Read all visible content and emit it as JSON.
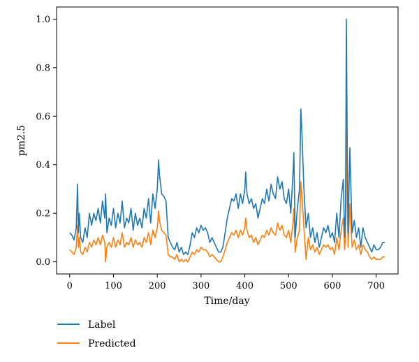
{
  "chart_data": {
    "type": "line",
    "title": "",
    "xlabel": "Time/day",
    "ylabel": "pm2.5",
    "xlim": [
      -30,
      750
    ],
    "ylim": [
      -0.05,
      1.05
    ],
    "x_ticks": [
      0,
      100,
      200,
      300,
      400,
      500,
      600,
      700
    ],
    "y_ticks": [
      0.0,
      0.2,
      0.4,
      0.6,
      0.8,
      1.0
    ],
    "x_tick_labels": [
      "0",
      "100",
      "200",
      "300",
      "400",
      "500",
      "600",
      "700"
    ],
    "y_tick_labels": [
      "0.0",
      "0.2",
      "0.4",
      "0.6",
      "0.8",
      "1.0"
    ],
    "grid": false,
    "legend_position": "below",
    "series": [
      {
        "name": "Label",
        "color": "#1f77b4",
        "x": [
          0,
          5,
          10,
          15,
          18,
          20,
          22,
          25,
          30,
          35,
          40,
          45,
          50,
          55,
          60,
          65,
          70,
          75,
          80,
          82,
          85,
          90,
          95,
          100,
          105,
          110,
          115,
          120,
          125,
          130,
          135,
          140,
          145,
          150,
          155,
          160,
          165,
          170,
          175,
          180,
          185,
          190,
          195,
          200,
          203,
          205,
          210,
          215,
          220,
          225,
          230,
          235,
          240,
          245,
          250,
          255,
          260,
          265,
          270,
          275,
          280,
          285,
          290,
          295,
          300,
          305,
          310,
          315,
          320,
          325,
          330,
          335,
          340,
          345,
          350,
          355,
          360,
          365,
          370,
          375,
          380,
          385,
          390,
          395,
          400,
          402,
          405,
          410,
          415,
          420,
          425,
          430,
          435,
          440,
          445,
          450,
          455,
          460,
          465,
          470,
          475,
          480,
          485,
          490,
          495,
          500,
          505,
          510,
          512,
          515,
          520,
          525,
          528,
          530,
          535,
          540,
          545,
          550,
          555,
          560,
          565,
          570,
          575,
          580,
          585,
          590,
          595,
          600,
          605,
          610,
          615,
          620,
          625,
          628,
          630,
          632,
          634,
          636,
          640,
          645,
          650,
          655,
          660,
          665,
          670,
          675,
          680,
          685,
          690,
          695,
          700,
          705,
          710,
          715,
          720
        ],
        "y": [
          0.12,
          0.11,
          0.09,
          0.14,
          0.32,
          0.12,
          0.2,
          0.1,
          0.08,
          0.14,
          0.1,
          0.2,
          0.15,
          0.2,
          0.17,
          0.22,
          0.16,
          0.25,
          0.18,
          0.28,
          0.12,
          0.18,
          0.15,
          0.22,
          0.14,
          0.2,
          0.16,
          0.25,
          0.14,
          0.18,
          0.16,
          0.22,
          0.13,
          0.2,
          0.15,
          0.18,
          0.14,
          0.22,
          0.18,
          0.26,
          0.16,
          0.28,
          0.22,
          0.3,
          0.42,
          0.36,
          0.28,
          0.27,
          0.25,
          0.1,
          0.08,
          0.06,
          0.05,
          0.08,
          0.04,
          0.06,
          0.03,
          0.04,
          0.03,
          0.07,
          0.12,
          0.1,
          0.14,
          0.12,
          0.15,
          0.13,
          0.14,
          0.12,
          0.08,
          0.1,
          0.08,
          0.06,
          0.04,
          0.04,
          0.06,
          0.12,
          0.18,
          0.22,
          0.26,
          0.25,
          0.28,
          0.22,
          0.28,
          0.24,
          0.3,
          0.37,
          0.28,
          0.24,
          0.26,
          0.22,
          0.24,
          0.18,
          0.22,
          0.26,
          0.24,
          0.3,
          0.25,
          0.32,
          0.28,
          0.26,
          0.35,
          0.3,
          0.33,
          0.26,
          0.24,
          0.3,
          0.2,
          0.36,
          0.45,
          0.1,
          0.22,
          0.3,
          0.63,
          0.55,
          0.3,
          0.14,
          0.2,
          0.1,
          0.14,
          0.08,
          0.12,
          0.06,
          0.1,
          0.14,
          0.12,
          0.15,
          0.1,
          0.12,
          0.08,
          0.2,
          0.1,
          0.26,
          0.34,
          0.1,
          0.2,
          1.0,
          0.45,
          0.12,
          0.47,
          0.12,
          0.17,
          0.1,
          0.14,
          0.06,
          0.14,
          0.1,
          0.08,
          0.06,
          0.04,
          0.07,
          0.05,
          0.05,
          0.06,
          0.08,
          0.08
        ]
      },
      {
        "name": "Predicted",
        "color": "#ff7f0e",
        "x": [
          0,
          5,
          10,
          15,
          18,
          20,
          22,
          25,
          30,
          35,
          40,
          45,
          50,
          55,
          60,
          65,
          70,
          75,
          80,
          82,
          85,
          90,
          95,
          100,
          105,
          110,
          115,
          120,
          125,
          130,
          135,
          140,
          145,
          150,
          155,
          160,
          165,
          170,
          175,
          180,
          185,
          190,
          195,
          200,
          203,
          205,
          210,
          215,
          220,
          225,
          230,
          235,
          240,
          245,
          250,
          255,
          260,
          265,
          270,
          275,
          280,
          285,
          290,
          295,
          300,
          305,
          310,
          315,
          320,
          325,
          330,
          335,
          340,
          345,
          350,
          355,
          360,
          365,
          370,
          375,
          380,
          385,
          390,
          395,
          400,
          402,
          405,
          410,
          415,
          420,
          425,
          430,
          435,
          440,
          445,
          450,
          455,
          460,
          465,
          470,
          475,
          480,
          485,
          490,
          495,
          500,
          505,
          510,
          512,
          515,
          520,
          525,
          528,
          530,
          535,
          540,
          545,
          550,
          555,
          560,
          565,
          570,
          575,
          580,
          585,
          590,
          595,
          600,
          605,
          610,
          615,
          620,
          625,
          628,
          630,
          632,
          634,
          636,
          640,
          645,
          650,
          655,
          660,
          665,
          670,
          675,
          680,
          685,
          690,
          695,
          700,
          705,
          710,
          715,
          720
        ],
        "y": [
          0.05,
          0.04,
          0.03,
          0.06,
          0.15,
          0.06,
          0.1,
          0.04,
          0.03,
          0.06,
          0.04,
          0.08,
          0.06,
          0.09,
          0.07,
          0.1,
          0.07,
          0.11,
          0.08,
          0.0,
          0.06,
          0.08,
          0.06,
          0.1,
          0.06,
          0.09,
          0.07,
          0.12,
          0.06,
          0.08,
          0.07,
          0.1,
          0.06,
          0.09,
          0.07,
          0.08,
          0.06,
          0.1,
          0.08,
          0.12,
          0.07,
          0.13,
          0.1,
          0.14,
          0.21,
          0.17,
          0.13,
          0.12,
          0.11,
          0.03,
          0.02,
          0.02,
          0.01,
          0.03,
          0.0,
          0.01,
          0.0,
          0.01,
          0.0,
          0.02,
          0.04,
          0.03,
          0.05,
          0.04,
          0.06,
          0.05,
          0.05,
          0.04,
          0.02,
          0.03,
          0.02,
          0.01,
          0.0,
          0.0,
          0.02,
          0.05,
          0.08,
          0.1,
          0.12,
          0.11,
          0.13,
          0.1,
          0.13,
          0.11,
          0.14,
          0.18,
          0.13,
          0.1,
          0.11,
          0.08,
          0.1,
          0.07,
          0.09,
          0.11,
          0.1,
          0.13,
          0.11,
          0.14,
          0.12,
          0.11,
          0.16,
          0.13,
          0.15,
          0.11,
          0.1,
          0.13,
          0.08,
          0.16,
          0.22,
          0.04,
          0.1,
          0.13,
          0.33,
          0.28,
          0.14,
          0.01,
          0.1,
          0.05,
          0.07,
          0.04,
          0.06,
          0.03,
          0.05,
          0.07,
          0.06,
          0.07,
          0.05,
          0.06,
          0.03,
          0.1,
          0.05,
          0.13,
          0.18,
          0.05,
          0.1,
          0.55,
          0.24,
          0.06,
          0.24,
          0.06,
          0.09,
          0.05,
          0.07,
          0.03,
          0.07,
          0.05,
          0.04,
          0.02,
          0.01,
          0.02,
          0.01,
          0.01,
          0.01,
          0.02,
          0.02
        ]
      }
    ]
  }
}
